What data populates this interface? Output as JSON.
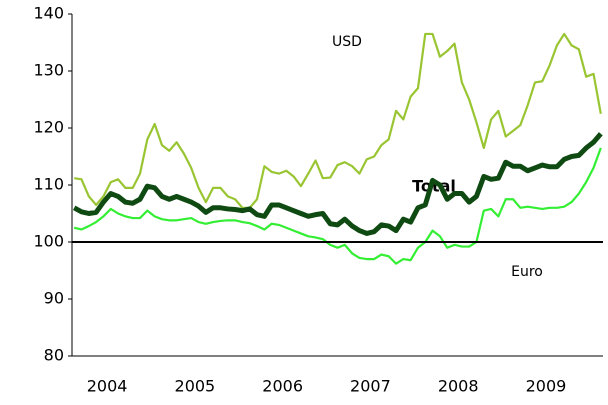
{
  "chart_data": {
    "type": "line",
    "annotations": [
      "USD",
      "Total",
      "Euro"
    ],
    "x": [
      2004.125,
      2004.208,
      2004.292,
      2004.375,
      2004.458,
      2004.542,
      2004.625,
      2004.708,
      2004.792,
      2004.875,
      2004.958,
      2005.042,
      2005.125,
      2005.208,
      2005.292,
      2005.375,
      2005.458,
      2005.542,
      2005.625,
      2005.708,
      2005.792,
      2005.875,
      2005.958,
      2006.042,
      2006.125,
      2006.208,
      2006.292,
      2006.375,
      2006.458,
      2006.542,
      2006.625,
      2006.708,
      2006.792,
      2006.875,
      2006.958,
      2007.042,
      2007.125,
      2007.208,
      2007.292,
      2007.375,
      2007.458,
      2007.542,
      2007.625,
      2007.708,
      2007.792,
      2007.875,
      2007.958,
      2008.042,
      2008.125,
      2008.208,
      2008.292,
      2008.375,
      2008.458,
      2008.542,
      2008.625,
      2008.708,
      2008.792,
      2008.875,
      2008.958,
      2009.042,
      2009.125,
      2009.208,
      2009.292,
      2009.375,
      2009.458,
      2009.542,
      2009.625,
      2009.708,
      2009.792,
      2009.875,
      2009.958,
      2010.042,
      2010.125
    ],
    "series": [
      {
        "name": "USD",
        "color": "#99c532",
        "width": 2.2,
        "values": [
          111.2,
          111,
          108,
          106.5,
          108,
          110.5,
          111,
          109.5,
          109.5,
          112,
          118,
          120.7,
          117,
          116,
          117.5,
          115.5,
          113,
          109.5,
          107,
          109.5,
          109.5,
          108,
          107.5,
          106,
          106,
          107.5,
          113.3,
          112.3,
          112,
          112.5,
          111.5,
          109.8,
          112,
          114.3,
          111.2,
          111.3,
          113.5,
          114,
          113.3,
          112,
          114.5,
          115,
          117,
          118,
          123,
          121.5,
          125.5,
          127,
          136.5,
          136.5,
          132.5,
          133.5,
          134.8,
          128,
          125,
          121,
          116.5,
          121.5,
          123,
          118.5,
          119.5,
          120.5,
          124,
          128,
          128.2,
          131,
          134.5,
          136.5,
          134.5,
          133.8,
          129,
          129.5,
          122.5
        ]
      },
      {
        "name": "Total",
        "color": "#0f4a12",
        "width": 5,
        "values": [
          106,
          105.3,
          105,
          105.2,
          107,
          108.5,
          108,
          107,
          106.8,
          107.5,
          109.8,
          109.5,
          108,
          107.5,
          108,
          107.5,
          107,
          106.3,
          105.2,
          106,
          106,
          105.8,
          105.7,
          105.5,
          105.8,
          104.8,
          104.5,
          106.5,
          106.5,
          106,
          105.5,
          105,
          104.5,
          104.8,
          105,
          103.2,
          103,
          104,
          102.8,
          102,
          101.5,
          101.8,
          103,
          102.8,
          102,
          104,
          103.5,
          106,
          106.5,
          110.8,
          110,
          107.5,
          108.5,
          108.5,
          107,
          108,
          111.5,
          111,
          111.2,
          114,
          113.3,
          113.3,
          112.5,
          113,
          113.5,
          113.2,
          113.2,
          114.5,
          115,
          115.2,
          116.5,
          117.5,
          119
        ]
      },
      {
        "name": "Euro",
        "color": "#33ee33",
        "width": 2.2,
        "values": [
          102.5,
          102.2,
          102.8,
          103.5,
          104.5,
          105.8,
          105,
          104.5,
          104.2,
          104.2,
          105.5,
          104.5,
          104,
          103.8,
          103.8,
          104,
          104.2,
          103.5,
          103.2,
          103.5,
          103.7,
          103.8,
          103.8,
          103.5,
          103.3,
          102.8,
          102.2,
          103.2,
          103,
          102.5,
          102,
          101.5,
          101,
          100.8,
          100.5,
          99.5,
          99,
          99.5,
          98,
          97.2,
          97,
          97,
          97.8,
          97.5,
          96.2,
          97,
          96.8,
          99,
          100,
          102,
          101,
          99,
          99.5,
          99.2,
          99.2,
          100,
          105.5,
          105.8,
          104.5,
          107.5,
          107.5,
          106,
          106.2,
          106,
          105.8,
          106,
          106,
          106.2,
          107,
          108.5,
          110.5,
          113,
          116.5
        ]
      }
    ],
    "reference_line": 100,
    "xlim": [
      2004.1,
      2010.15
    ],
    "xticks": [
      {
        "value": 2004.5,
        "label": "2004"
      },
      {
        "value": 2005.5,
        "label": "2005"
      },
      {
        "value": 2006.5,
        "label": "2006"
      },
      {
        "value": 2007.5,
        "label": "2007"
      },
      {
        "value": 2008.5,
        "label": "2008"
      },
      {
        "value": 2009.5,
        "label": "2009"
      }
    ],
    "ylim": [
      80,
      140
    ],
    "yticks": [
      80,
      90,
      100,
      110,
      120,
      130,
      140
    ],
    "grid": false
  }
}
